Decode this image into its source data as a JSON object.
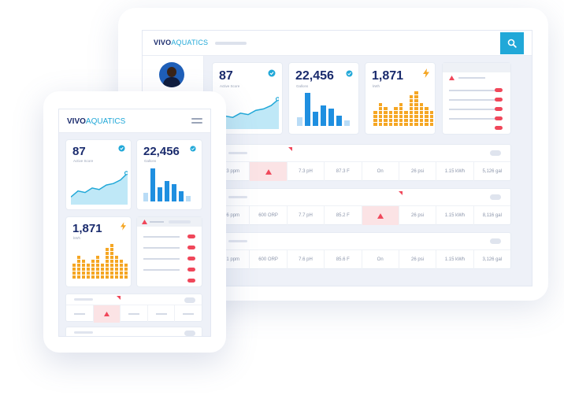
{
  "brand": {
    "name_bold": "VIVO",
    "name_light": "AQUATICS",
    "accent": "#21a8d8",
    "navy": "#1a2b6d",
    "alert": "#f0475a"
  },
  "desktop": {
    "stats": [
      {
        "value": "87",
        "label": "Active Score",
        "icon": "verified-badge-icon"
      },
      {
        "value": "22,456",
        "label": "Gallons",
        "icon": "water-drop-icon"
      },
      {
        "value": "1,871",
        "label": "kWh",
        "icon": "lightning-bolt-icon"
      }
    ],
    "rows": [
      {
        "cells": [
          "1.3 ppm",
          "",
          "7.3 pH",
          "87.3 F",
          "On",
          "26 psi",
          "1.15 kWh",
          "5,126 gal"
        ],
        "alert_index": 1
      },
      {
        "cells": [
          "1.6 ppm",
          "600 ORP",
          "7.7 pH",
          "85.2 F",
          "",
          "26 psi",
          "1.15 kWh",
          "8,116 gal"
        ],
        "alert_index": 4
      },
      {
        "cells": [
          "1.1 ppm",
          "600 ORP",
          "7.6 pH",
          "85.6 F",
          "On",
          "26 psi",
          "1.15 kWh",
          "3,126 gal"
        ],
        "alert_index": -1
      }
    ]
  },
  "tablet": {
    "stats": [
      {
        "value": "87",
        "label": "Active Score"
      },
      {
        "value": "22,456",
        "label": "Gallons"
      },
      {
        "value": "1,871",
        "label": "kWh"
      }
    ]
  },
  "charts": {
    "active_score_line": [
      0.15,
      0.35,
      0.3,
      0.45,
      0.4,
      0.55,
      0.6,
      0.72,
      0.95
    ],
    "gallons_bars": [
      0.25,
      0.95,
      0.4,
      0.6,
      0.5,
      0.3,
      0.15
    ],
    "kwh_stacks": [
      4,
      6,
      5,
      4,
      5,
      6,
      4,
      8,
      9,
      6,
      5,
      4
    ]
  }
}
